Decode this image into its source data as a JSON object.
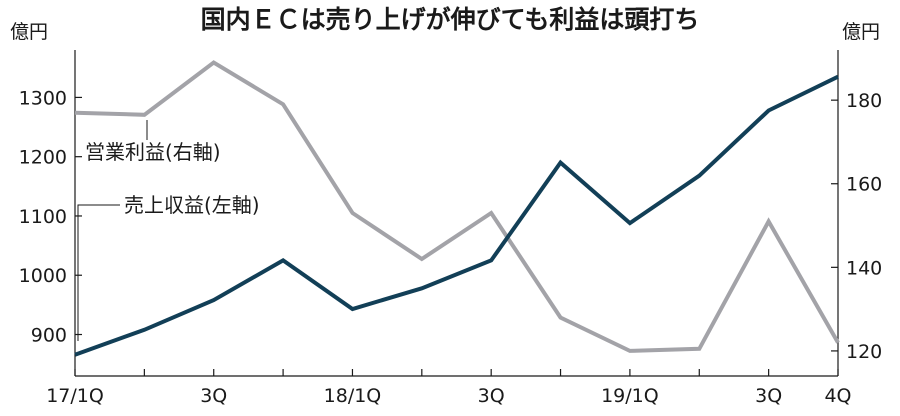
{
  "chart_data": {
    "type": "line",
    "title": "国内ＥＣは売り上げが伸びても利益は頭打ち",
    "left_unit": "億円",
    "right_unit": "億円",
    "x_tick_labels": [
      "17/1Q",
      "3Q",
      "18/1Q",
      "3Q",
      "19/1Q",
      "3Q",
      "4Q"
    ],
    "x_tick_label_index": [
      0,
      2,
      4,
      6,
      8,
      10,
      11
    ],
    "left_axis": {
      "ticks": [
        900,
        1000,
        1100,
        1200,
        1300
      ],
      "ylim": [
        830,
        1380
      ]
    },
    "right_axis": {
      "ticks": [
        120,
        140,
        160,
        180
      ],
      "ylim": [
        114,
        192
      ]
    },
    "grid": false,
    "series": [
      {
        "name": "売上収益(左軸)",
        "axis": "left",
        "color": "#123f57",
        "values": [
          866,
          908,
          958,
          1025,
          943,
          978,
          1025,
          1190,
          1088,
          1168,
          1278,
          1335
        ]
      },
      {
        "name": "営業利益(右軸)",
        "axis": "right",
        "color": "#a3a3a8",
        "values": [
          177,
          176.5,
          189,
          179,
          153,
          142,
          153,
          128,
          120,
          120.5,
          151,
          122
        ]
      }
    ]
  }
}
